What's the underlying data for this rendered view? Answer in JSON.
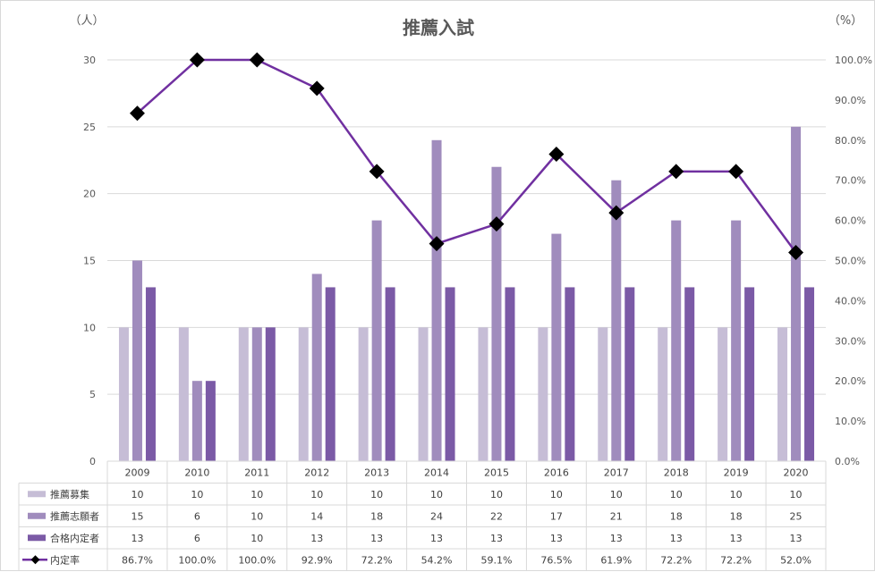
{
  "chart_data": {
    "type": "bar",
    "title": "推薦入試",
    "left_unit": "（人）",
    "right_unit": "（%）",
    "categories": [
      "2009",
      "2010",
      "2011",
      "2012",
      "2013",
      "2014",
      "2015",
      "2016",
      "2017",
      "2018",
      "2019",
      "2020"
    ],
    "ylim": [
      0,
      30
    ],
    "y_ticks": [
      "0",
      "5",
      "10",
      "15",
      "20",
      "25",
      "30"
    ],
    "y2lim": [
      0,
      100
    ],
    "y2_ticks": [
      "0.0%",
      "10.0%",
      "20.0%",
      "30.0%",
      "40.0%",
      "50.0%",
      "60.0%",
      "70.0%",
      "80.0%",
      "90.0%",
      "100.0%"
    ],
    "grid": true,
    "legend": "data-table",
    "series": [
      {
        "name": "推薦募集",
        "type": "bar",
        "axis": "left",
        "color": "#c6bdd6",
        "values": [
          10,
          10,
          10,
          10,
          10,
          10,
          10,
          10,
          10,
          10,
          10,
          10
        ],
        "labels": [
          "10",
          "10",
          "10",
          "10",
          "10",
          "10",
          "10",
          "10",
          "10",
          "10",
          "10",
          "10"
        ]
      },
      {
        "name": "推薦志願者",
        "type": "bar",
        "axis": "left",
        "color": "#a08cbd",
        "values": [
          15,
          6,
          10,
          14,
          18,
          24,
          22,
          17,
          21,
          18,
          18,
          25
        ],
        "labels": [
          "15",
          "6",
          "10",
          "14",
          "18",
          "24",
          "22",
          "17",
          "21",
          "18",
          "18",
          "25"
        ]
      },
      {
        "name": "合格内定者",
        "type": "bar",
        "axis": "left",
        "color": "#7b5aa6",
        "values": [
          13,
          6,
          10,
          13,
          13,
          13,
          13,
          13,
          13,
          13,
          13,
          13
        ],
        "labels": [
          "13",
          "6",
          "10",
          "13",
          "13",
          "13",
          "13",
          "13",
          "13",
          "13",
          "13",
          "13"
        ]
      },
      {
        "name": "内定率",
        "type": "line",
        "axis": "right",
        "color": "#7030a0",
        "marker_color": "#000000",
        "values": [
          86.7,
          100.0,
          100.0,
          92.9,
          72.2,
          54.2,
          59.1,
          76.5,
          61.9,
          72.2,
          72.2,
          52.0
        ],
        "labels": [
          "86.7%",
          "100.0%",
          "100.0%",
          "92.9%",
          "72.2%",
          "54.2%",
          "59.1%",
          "76.5%",
          "61.9%",
          "72.2%",
          "72.2%",
          "52.0%"
        ]
      }
    ]
  }
}
